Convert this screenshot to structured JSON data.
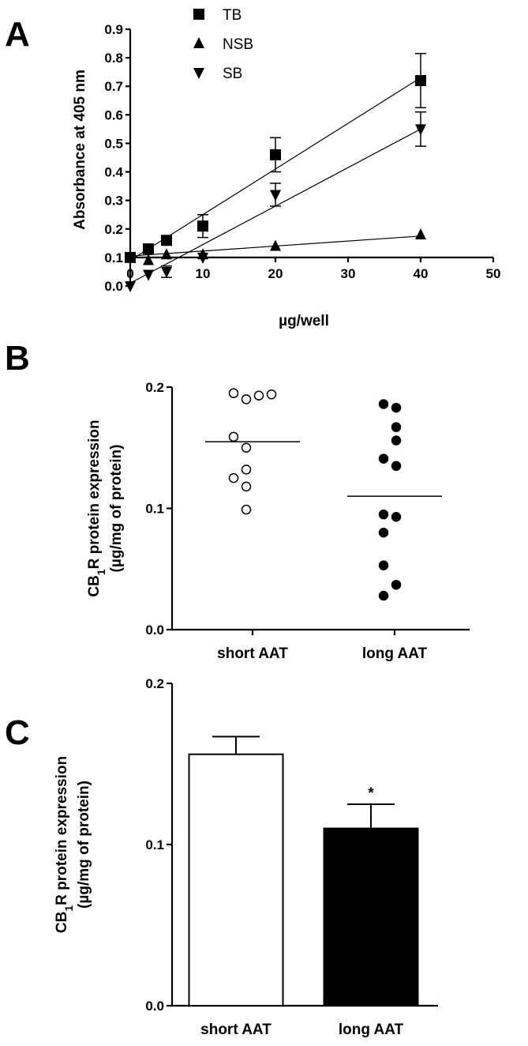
{
  "chart_data": [
    {
      "panel": "A",
      "type": "scatter",
      "xlabel": "µg/well",
      "ylabel": "Absorbance at 405 nm",
      "xlim": [
        0,
        50
      ],
      "ylim": [
        0,
        0.9
      ],
      "x_ticks": [
        0,
        10,
        20,
        30,
        40,
        50
      ],
      "y_ticks": [
        0.0,
        0.1,
        0.2,
        0.3,
        0.4,
        0.5,
        0.6,
        0.7,
        0.8,
        0.9
      ],
      "legend_position": "top",
      "series": [
        {
          "name": "TB",
          "marker": "square",
          "points": [
            {
              "x": 0,
              "y": 0.1,
              "err": 0
            },
            {
              "x": 2.5,
              "y": 0.13,
              "err": 0
            },
            {
              "x": 5,
              "y": 0.16,
              "err": 0
            },
            {
              "x": 10,
              "y": 0.21,
              "err": 0.04
            },
            {
              "x": 20,
              "y": 0.46,
              "err": 0.06
            },
            {
              "x": 40,
              "y": 0.72,
              "err": 0.095
            }
          ],
          "fit": [
            [
              0,
              0.09
            ],
            [
              40,
              0.73
            ]
          ]
        },
        {
          "name": "NSB",
          "marker": "triangle-up",
          "points": [
            {
              "x": 0,
              "y": 0.1,
              "err": 0
            },
            {
              "x": 2.5,
              "y": 0.09,
              "err": 0
            },
            {
              "x": 5,
              "y": 0.11,
              "err": 0
            },
            {
              "x": 10,
              "y": 0.11,
              "err": 0
            },
            {
              "x": 20,
              "y": 0.14,
              "err": 0
            },
            {
              "x": 40,
              "y": 0.18,
              "err": 0
            }
          ],
          "fit": [
            [
              0,
              0.105
            ],
            [
              40,
              0.175
            ]
          ]
        },
        {
          "name": "SB",
          "marker": "triangle-down",
          "points": [
            {
              "x": 0,
              "y": 0.0,
              "err": 0
            },
            {
              "x": 2.5,
              "y": 0.04,
              "err": 0
            },
            {
              "x": 5,
              "y": 0.05,
              "err": 0.02
            },
            {
              "x": 10,
              "y": 0.1,
              "err": 0
            },
            {
              "x": 20,
              "y": 0.32,
              "err": 0.04
            },
            {
              "x": 40,
              "y": 0.55,
              "err": 0.06
            }
          ],
          "fit": [
            [
              0,
              0.01
            ],
            [
              40,
              0.55
            ]
          ]
        }
      ]
    },
    {
      "panel": "B",
      "type": "scatter",
      "ylabel_line1": "CB",
      "ylabel_sub": "1",
      "ylabel_line1_rest": "R protein expression",
      "ylabel_line2": "(µg/mg of protein)",
      "ylim": [
        0,
        0.2
      ],
      "y_ticks": [
        "0.0",
        "0.1",
        "0.2"
      ],
      "categories": [
        "short AAT",
        "long AAT"
      ],
      "series": [
        {
          "name": "short AAT",
          "fill": "open",
          "mean": 0.155,
          "points": [
            {
              "dx": -32,
              "y": 0.195
            },
            {
              "dx": -16,
              "y": 0.19
            },
            {
              "dx": 0,
              "y": 0.193
            },
            {
              "dx": 16,
              "y": 0.194
            },
            {
              "dx": -32,
              "y": 0.159
            },
            {
              "dx": -16,
              "y": 0.15
            },
            {
              "dx": -32,
              "y": 0.125
            },
            {
              "dx": -16,
              "y": 0.132
            },
            {
              "dx": -16,
              "y": 0.118
            },
            {
              "dx": -16,
              "y": 0.099
            }
          ]
        },
        {
          "name": "long AAT",
          "fill": "filled",
          "mean": 0.11,
          "points": [
            {
              "dx": -22,
              "y": 0.186
            },
            {
              "dx": -6,
              "y": 0.183
            },
            {
              "dx": -6,
              "y": 0.167
            },
            {
              "dx": -22,
              "y": 0.141
            },
            {
              "dx": -6,
              "y": 0.135
            },
            {
              "dx": -6,
              "y": 0.156
            },
            {
              "dx": -22,
              "y": 0.095
            },
            {
              "dx": -6,
              "y": 0.093
            },
            {
              "dx": -22,
              "y": 0.08
            },
            {
              "dx": -22,
              "y": 0.053
            },
            {
              "dx": -6,
              "y": 0.037
            },
            {
              "dx": -22,
              "y": 0.028
            }
          ]
        }
      ]
    },
    {
      "panel": "C",
      "type": "bar",
      "ylabel_line1": "CB",
      "ylabel_sub": "1",
      "ylabel_line1_rest": "R protein expression",
      "ylabel_line2": "(µg/mg of protein)",
      "ylim": [
        0,
        0.2
      ],
      "y_ticks": [
        "0.0",
        "0.1",
        "0.2"
      ],
      "categories": [
        "short AAT",
        "long AAT"
      ],
      "values": [
        0.156,
        0.11
      ],
      "errors": [
        0.011,
        0.015
      ],
      "fills": [
        "#ffffff",
        "#000000"
      ],
      "annotations": [
        "",
        "*"
      ]
    }
  ],
  "panel_letters": [
    "A",
    "B",
    "C"
  ]
}
